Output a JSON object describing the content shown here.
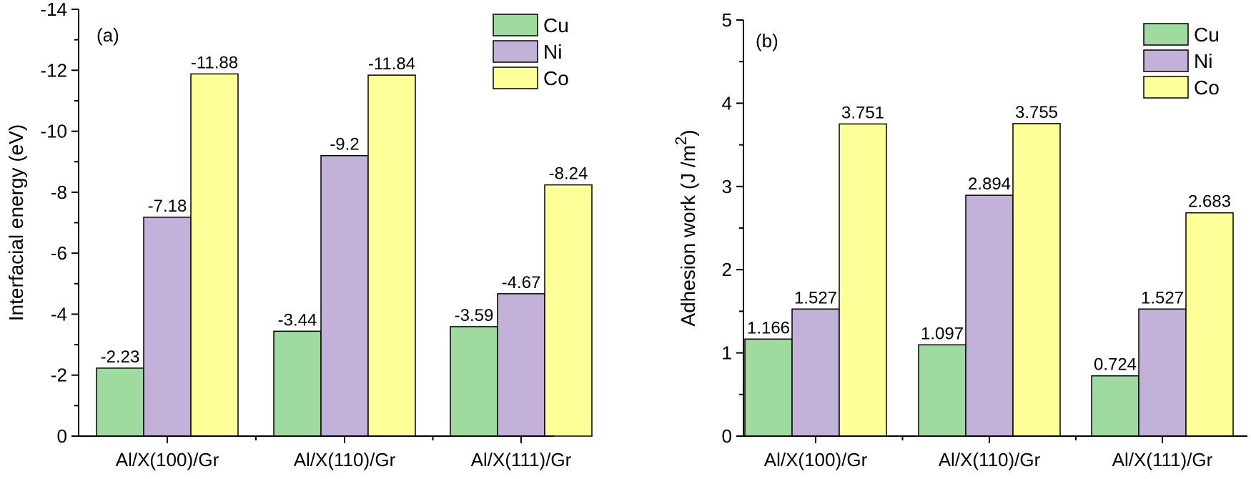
{
  "chart_data": [
    {
      "type": "bar",
      "panel_label": "(a)",
      "categories": [
        "Al/X(100)/Gr",
        "Al/X(110)/Gr",
        "Al/X(111)/Gr"
      ],
      "series": [
        {
          "name": "Cu",
          "values": [
            -2.23,
            -3.44,
            -3.59
          ],
          "labels": [
            "-2.23",
            "-3.44",
            "-3.59"
          ],
          "color": "#9fdb9f"
        },
        {
          "name": "Ni",
          "values": [
            -7.18,
            -9.2,
            -4.67
          ],
          "labels": [
            "-7.18",
            "-9.2",
            "-4.67"
          ],
          "color": "#c2b1d9"
        },
        {
          "name": "Co",
          "values": [
            -11.88,
            -11.84,
            -8.24
          ],
          "labels": [
            "-11.88",
            "-11.84",
            "-8.24"
          ],
          "color": "#ffff99"
        }
      ],
      "ylabel": "Interfacial energy (eV)",
      "xlabel": "",
      "ylim": [
        0,
        -14
      ],
      "yticks": [
        0,
        -2,
        -4,
        -6,
        -8,
        -10,
        -12,
        -14
      ],
      "ytick_labels": [
        "0",
        "-2",
        "-4",
        "-6",
        "-8",
        "-10",
        "-12",
        "-14"
      ],
      "legend_position": "top-right",
      "grid": false
    },
    {
      "type": "bar",
      "panel_label": "(b)",
      "categories": [
        "Al/X(100)/Gr",
        "Al/X(110)/Gr",
        "Al/X(111)/Gr"
      ],
      "series": [
        {
          "name": "Cu",
          "values": [
            1.166,
            1.097,
            0.724
          ],
          "labels": [
            "1.166",
            "1.097",
            "0.724"
          ],
          "color": "#9fdb9f"
        },
        {
          "name": "Ni",
          "values": [
            1.527,
            2.894,
            1.527
          ],
          "labels": [
            "1.527",
            "2.894",
            "1.527"
          ],
          "color": "#c2b1d9"
        },
        {
          "name": "Co",
          "values": [
            3.751,
            3.755,
            2.683
          ],
          "labels": [
            "3.751",
            "3.755",
            "2.683"
          ],
          "color": "#ffff99"
        }
      ],
      "ylabel": "Adhesion work (J /m",
      "ylabel_superscript": "2",
      "ylabel_suffix": ")",
      "xlabel": "",
      "ylim": [
        0,
        5
      ],
      "yticks": [
        0,
        1,
        2,
        3,
        4,
        5
      ],
      "ytick_labels": [
        "0",
        "1",
        "2",
        "3",
        "4",
        "5"
      ],
      "legend_position": "top-right",
      "grid": false
    }
  ]
}
